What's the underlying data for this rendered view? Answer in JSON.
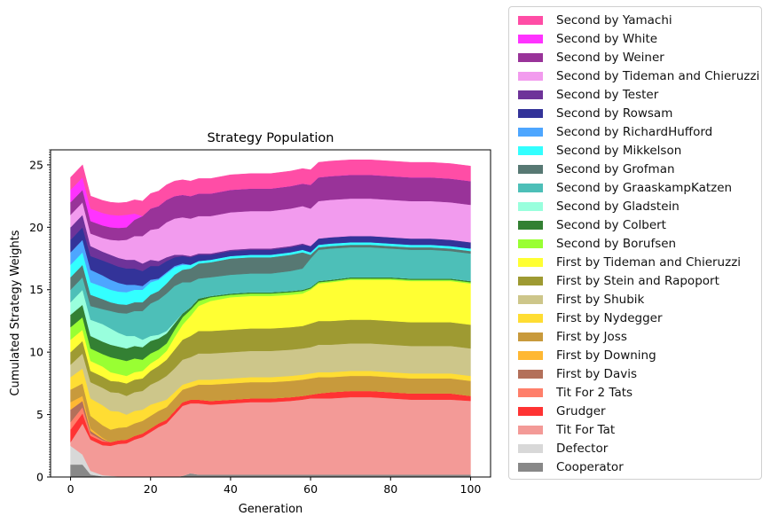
{
  "chart_data": {
    "type": "area",
    "title": "Strategy Population",
    "xlabel": "Generation",
    "ylabel": "Cumulated Strategy Weights",
    "xlim": [
      -5,
      105
    ],
    "ylim": [
      0,
      26.2
    ],
    "xticks": [
      0,
      20,
      40,
      60,
      80,
      100
    ],
    "yticks": [
      0,
      5,
      10,
      15,
      20,
      25
    ],
    "legend_position": "outside-right",
    "x": [
      0,
      3,
      5,
      8,
      10,
      12,
      14,
      16,
      18,
      20,
      22,
      24,
      26,
      28,
      30,
      32,
      35,
      40,
      45,
      50,
      55,
      58,
      60,
      62,
      65,
      70,
      75,
      80,
      85,
      90,
      95,
      100
    ],
    "series": [
      {
        "name": "Cooperator",
        "color": "#888888",
        "values": [
          1.0,
          1.0,
          0.2,
          0.05,
          0.05,
          0.05,
          0.0,
          0.0,
          0.0,
          0.0,
          0.0,
          0.0,
          0.0,
          0.1,
          0.3,
          0.2,
          0.2,
          0.2,
          0.2,
          0.2,
          0.2,
          0.2,
          0.2,
          0.2,
          0.2,
          0.2,
          0.2,
          0.2,
          0.2,
          0.2,
          0.2,
          0.2
        ]
      },
      {
        "name": "Defector",
        "color": "#d8d8d8",
        "values": [
          1.5,
          0.8,
          0.3,
          0.1,
          0.05,
          0.0,
          0.0,
          0.0,
          0.0,
          0.0,
          0.0,
          0.0,
          0.0,
          0.0,
          0.0,
          0.0,
          0.0,
          0.0,
          0.0,
          0.0,
          0.0,
          0.0,
          0.0,
          0.0,
          0.0,
          0.0,
          0.0,
          0.0,
          0.0,
          0.0,
          0.0,
          0.0
        ]
      },
      {
        "name": "Tit For Tat",
        "color": "#f39a97",
        "values": [
          0.3,
          2.5,
          2.5,
          2.4,
          2.4,
          2.6,
          2.7,
          3.0,
          3.2,
          3.6,
          4.0,
          4.3,
          5.0,
          5.6,
          5.6,
          5.7,
          5.6,
          5.7,
          5.8,
          5.8,
          5.9,
          6.0,
          6.1,
          6.1,
          6.1,
          6.2,
          6.2,
          6.1,
          6.0,
          6.0,
          6.0,
          5.9
        ]
      },
      {
        "name": "Grudger",
        "color": "#ff3333",
        "values": [
          1.0,
          0.8,
          0.3,
          0.3,
          0.3,
          0.3,
          0.3,
          0.3,
          0.3,
          0.3,
          0.3,
          0.3,
          0.3,
          0.3,
          0.3,
          0.3,
          0.3,
          0.3,
          0.3,
          0.3,
          0.3,
          0.3,
          0.3,
          0.4,
          0.5,
          0.5,
          0.5,
          0.5,
          0.5,
          0.5,
          0.5,
          0.4
        ]
      },
      {
        "name": "Tit For 2 Tats",
        "color": "#ff7f6a",
        "values": [
          0.6,
          0.5,
          0.2,
          0.1,
          0.0,
          0.0,
          0.0,
          0.0,
          0.0,
          0.0,
          0.0,
          0.0,
          0.0,
          0.0,
          0.0,
          0.0,
          0.0,
          0.0,
          0.0,
          0.0,
          0.0,
          0.0,
          0.0,
          0.0,
          0.0,
          0.0,
          0.0,
          0.0,
          0.0,
          0.0,
          0.0,
          0.0
        ]
      },
      {
        "name": "First by Davis",
        "color": "#b3705a",
        "values": [
          1.0,
          0.5,
          0.2,
          0.1,
          0.0,
          0.0,
          0.0,
          0.0,
          0.0,
          0.0,
          0.0,
          0.0,
          0.0,
          0.0,
          0.0,
          0.0,
          0.0,
          0.0,
          0.0,
          0.0,
          0.0,
          0.0,
          0.0,
          0.0,
          0.0,
          0.0,
          0.0,
          0.0,
          0.0,
          0.0,
          0.0,
          0.0
        ]
      },
      {
        "name": "First by Downing",
        "color": "#ffb833",
        "values": [
          0.6,
          0.4,
          0.2,
          0.1,
          0.0,
          0.0,
          0.0,
          0.0,
          0.0,
          0.0,
          0.0,
          0.0,
          0.0,
          0.0,
          0.0,
          0.0,
          0.0,
          0.0,
          0.0,
          0.0,
          0.0,
          0.0,
          0.0,
          0.0,
          0.0,
          0.0,
          0.0,
          0.0,
          0.0,
          0.0,
          0.0,
          0.0
        ]
      },
      {
        "name": "First by Joss",
        "color": "#c89a3c",
        "values": [
          1.0,
          1.0,
          1.0,
          1.0,
          1.0,
          1.0,
          1.0,
          1.0,
          1.0,
          1.0,
          1.0,
          1.0,
          1.0,
          1.0,
          1.0,
          1.2,
          1.3,
          1.3,
          1.3,
          1.3,
          1.3,
          1.3,
          1.3,
          1.3,
          1.2,
          1.2,
          1.2,
          1.2,
          1.2,
          1.2,
          1.2,
          1.2
        ]
      },
      {
        "name": "First by Nydegger",
        "color": "#ffdd33",
        "values": [
          1.0,
          1.2,
          1.4,
          1.6,
          1.5,
          1.3,
          1.0,
          1.0,
          0.9,
          0.9,
          0.7,
          0.6,
          0.5,
          0.4,
          0.4,
          0.4,
          0.4,
          0.4,
          0.4,
          0.4,
          0.4,
          0.4,
          0.4,
          0.4,
          0.4,
          0.4,
          0.4,
          0.4,
          0.4,
          0.4,
          0.4,
          0.4
        ]
      },
      {
        "name": "First by Shubik",
        "color": "#cdc68a",
        "values": [
          1.0,
          1.2,
          1.3,
          1.4,
          1.5,
          1.5,
          1.5,
          1.5,
          1.5,
          1.6,
          1.7,
          1.9,
          1.9,
          2.0,
          2.0,
          2.1,
          2.1,
          2.1,
          2.1,
          2.1,
          2.1,
          2.1,
          2.1,
          2.2,
          2.2,
          2.2,
          2.2,
          2.2,
          2.2,
          2.2,
          2.2,
          2.2
        ]
      },
      {
        "name": "First by Stein and Rapoport",
        "color": "#9e9a32",
        "values": [
          1.0,
          1.0,
          0.9,
          0.9,
          0.9,
          0.9,
          1.0,
          1.0,
          1.0,
          1.1,
          1.2,
          1.3,
          1.5,
          1.6,
          1.7,
          1.8,
          1.8,
          1.8,
          1.8,
          1.8,
          1.8,
          1.8,
          1.9,
          1.9,
          1.9,
          1.9,
          1.9,
          1.9,
          1.9,
          1.9,
          1.9,
          1.9
        ]
      },
      {
        "name": "First by Tideman and Chieruzzi",
        "color": "#ffff33",
        "values": [
          1.0,
          0.9,
          0.8,
          0.8,
          0.7,
          0.6,
          0.6,
          0.6,
          0.6,
          0.6,
          0.6,
          0.7,
          1.0,
          1.2,
          1.6,
          2.0,
          2.4,
          2.6,
          2.6,
          2.6,
          2.6,
          2.6,
          2.7,
          3.0,
          3.1,
          3.2,
          3.2,
          3.3,
          3.3,
          3.3,
          3.3,
          3.3
        ]
      },
      {
        "name": "Second by Borufsen",
        "color": "#99ff33",
        "values": [
          1.0,
          1.0,
          1.0,
          1.0,
          1.2,
          1.2,
          1.2,
          1.1,
          0.9,
          0.8,
          0.7,
          0.6,
          0.6,
          0.6,
          0.5,
          0.4,
          0.3,
          0.2,
          0.2,
          0.2,
          0.2,
          0.2,
          0.1,
          0.1,
          0.1,
          0.1,
          0.1,
          0.1,
          0.1,
          0.1,
          0.1,
          0.1
        ]
      },
      {
        "name": "Second by Colbert",
        "color": "#338033",
        "values": [
          1.0,
          1.0,
          1.0,
          1.0,
          1.0,
          1.0,
          1.0,
          1.0,
          1.0,
          1.0,
          0.9,
          0.8,
          0.5,
          0.3,
          0.2,
          0.2,
          0.1,
          0.1,
          0.1,
          0.1,
          0.1,
          0.1,
          0.1,
          0.1,
          0.1,
          0.1,
          0.1,
          0.1,
          0.1,
          0.1,
          0.1,
          0.1
        ]
      },
      {
        "name": "Second by Gladstein",
        "color": "#99ffdd",
        "values": [
          1.0,
          1.2,
          1.3,
          1.4,
          1.3,
          1.1,
          1.0,
          0.8,
          0.6,
          0.4,
          0.3,
          0.2,
          0.1,
          0.0,
          0.0,
          0.0,
          0.0,
          0.0,
          0.0,
          0.0,
          0.0,
          0.0,
          0.0,
          0.0,
          0.0,
          0.0,
          0.0,
          0.0,
          0.0,
          0.0,
          0.0,
          0.0
        ]
      },
      {
        "name": "Second by GraaskampKatzen",
        "color": "#4dbfb8",
        "values": [
          1.0,
          1.0,
          1.1,
          1.2,
          1.4,
          1.6,
          1.8,
          2.0,
          2.3,
          2.6,
          2.8,
          3.0,
          2.9,
          2.5,
          2.0,
          1.6,
          1.5,
          1.5,
          1.5,
          1.5,
          1.6,
          1.7,
          2.3,
          2.5,
          2.5,
          2.4,
          2.4,
          2.3,
          2.3,
          2.3,
          2.2,
          2.2
        ]
      },
      {
        "name": "Second by Grofman",
        "color": "#577873",
        "values": [
          1.0,
          1.0,
          0.9,
          0.8,
          0.7,
          0.7,
          0.7,
          0.7,
          0.7,
          0.7,
          0.7,
          0.8,
          0.9,
          1.0,
          1.1,
          1.2,
          1.2,
          1.3,
          1.3,
          1.3,
          1.3,
          1.3,
          0.3,
          0.2,
          0.2,
          0.2,
          0.2,
          0.2,
          0.2,
          0.2,
          0.2,
          0.2
        ]
      },
      {
        "name": "Second by Mikkelson",
        "color": "#33ffff",
        "values": [
          1.0,
          1.0,
          1.0,
          1.0,
          1.0,
          1.0,
          1.0,
          1.0,
          1.0,
          1.0,
          0.9,
          0.8,
          0.6,
          0.4,
          0.3,
          0.2,
          0.2,
          0.2,
          0.2,
          0.2,
          0.2,
          0.2,
          0.2,
          0.2,
          0.2,
          0.2,
          0.2,
          0.2,
          0.2,
          0.2,
          0.2,
          0.2
        ]
      },
      {
        "name": "Second by RichardHufford",
        "color": "#4da6ff",
        "values": [
          1.0,
          1.0,
          1.0,
          0.9,
          0.8,
          0.7,
          0.6,
          0.4,
          0.3,
          0.2,
          0.1,
          0.1,
          0.1,
          0.1,
          0.0,
          0.0,
          0.0,
          0.0,
          0.0,
          0.0,
          0.0,
          0.0,
          0.0,
          0.0,
          0.0,
          0.0,
          0.0,
          0.0,
          0.0,
          0.0,
          0.0,
          0.0
        ]
      },
      {
        "name": "Second by Rowsam",
        "color": "#333399",
        "values": [
          1.0,
          1.0,
          1.1,
          1.2,
          1.3,
          1.3,
          1.3,
          1.3,
          1.2,
          1.1,
          1.0,
          0.9,
          0.7,
          0.6,
          0.6,
          0.5,
          0.4,
          0.4,
          0.4,
          0.4,
          0.4,
          0.4,
          0.5,
          0.5,
          0.5,
          0.5,
          0.5,
          0.5,
          0.5,
          0.5,
          0.5,
          0.5
        ]
      },
      {
        "name": "Second by Tester",
        "color": "#6e3399",
        "values": [
          1.0,
          1.0,
          0.8,
          0.7,
          0.7,
          0.7,
          0.7,
          0.7,
          0.6,
          0.5,
          0.4,
          0.3,
          0.2,
          0.1,
          0.1,
          0.1,
          0.1,
          0.1,
          0.1,
          0.1,
          0.1,
          0.1,
          0.0,
          0.0,
          0.0,
          0.0,
          0.0,
          0.0,
          0.0,
          0.0,
          0.0,
          0.0
        ]
      },
      {
        "name": "Second by Tideman and Chieruzzi",
        "color": "#f29bee",
        "values": [
          1.0,
          1.0,
          1.0,
          1.1,
          1.2,
          1.4,
          1.6,
          1.9,
          2.2,
          2.4,
          2.6,
          2.8,
          2.9,
          3.0,
          3.0,
          3.0,
          3.0,
          3.0,
          3.0,
          3.0,
          3.0,
          3.0,
          3.0,
          3.0,
          3.0,
          3.0,
          3.0,
          3.0,
          3.0,
          3.0,
          3.0,
          3.0
        ]
      },
      {
        "name": "Second by Weiner",
        "color": "#993399",
        "values": [
          1.0,
          1.0,
          1.0,
          1.0,
          1.0,
          1.0,
          1.0,
          1.3,
          1.6,
          1.7,
          1.8,
          1.8,
          1.8,
          1.8,
          1.8,
          1.8,
          1.8,
          1.8,
          1.8,
          1.8,
          1.8,
          1.8,
          1.9,
          1.9,
          1.9,
          1.9,
          1.9,
          1.9,
          1.9,
          1.9,
          1.9,
          1.9
        ]
      },
      {
        "name": "Second by White",
        "color": "#ff33ff",
        "values": [
          1.0,
          1.0,
          1.0,
          1.0,
          1.0,
          1.0,
          1.0,
          0.5,
          0.0,
          0.0,
          0.0,
          0.0,
          0.0,
          0.0,
          0.0,
          0.0,
          0.0,
          0.0,
          0.0,
          0.0,
          0.0,
          0.0,
          0.0,
          0.0,
          0.0,
          0.0,
          0.0,
          0.0,
          0.0,
          0.0,
          0.0,
          0.0
        ]
      },
      {
        "name": "Second by Yamachi",
        "color": "#ff4da6",
        "values": [
          1.0,
          1.0,
          1.0,
          1.0,
          1.0,
          1.0,
          1.0,
          1.1,
          1.2,
          1.2,
          1.2,
          1.2,
          1.2,
          1.2,
          1.2,
          1.2,
          1.2,
          1.2,
          1.2,
          1.2,
          1.2,
          1.2,
          1.2,
          1.2,
          1.2,
          1.2,
          1.2,
          1.2,
          1.2,
          1.2,
          1.2,
          1.2
        ]
      }
    ]
  }
}
